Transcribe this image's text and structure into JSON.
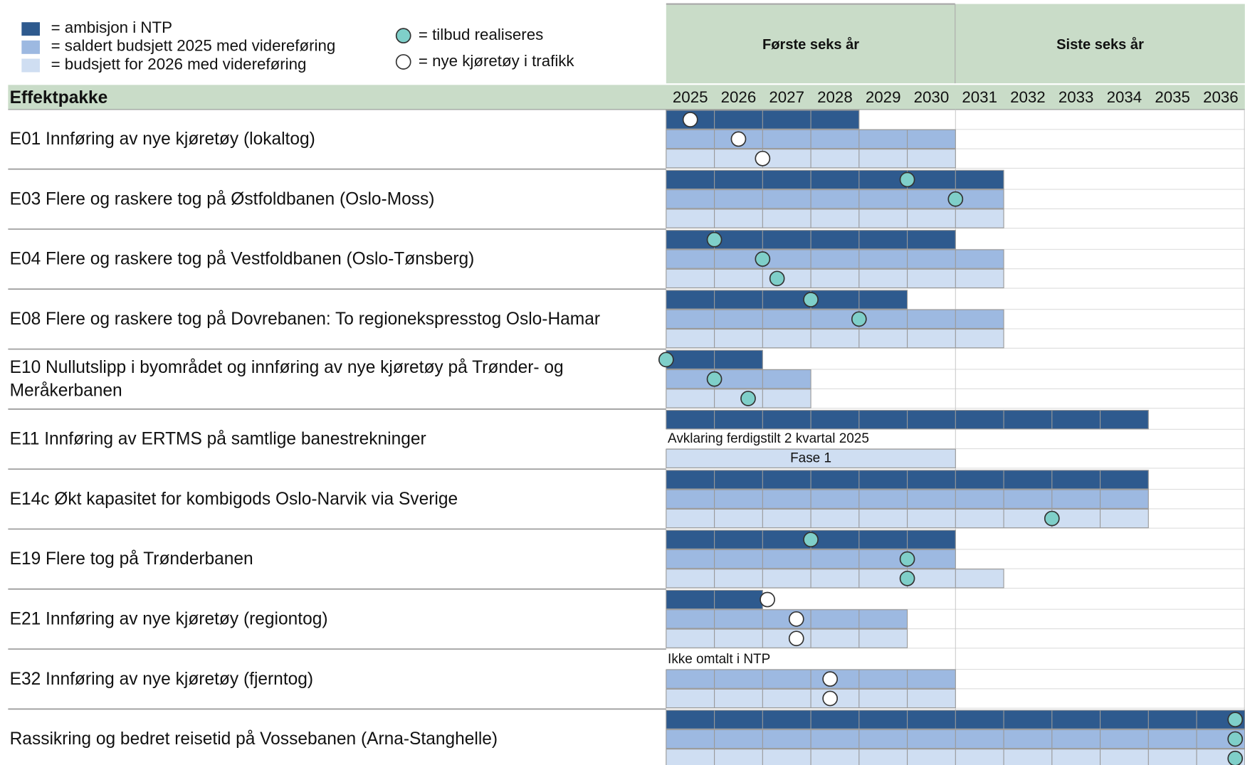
{
  "chart_data": {
    "type": "gantt",
    "row_header": "Effektpakke",
    "periods": [
      {
        "label": "Første seks år",
        "from": 2025,
        "to": 2031
      },
      {
        "label": "Siste seks år",
        "from": 2031,
        "to": 2037
      }
    ],
    "categories": [
      "2025",
      "2026",
      "2027",
      "2028",
      "2029",
      "2030",
      "2031",
      "2032",
      "2033",
      "2034",
      "2035",
      "2036"
    ],
    "xlim": [
      2025,
      2037
    ],
    "series": [
      {
        "name": "= ambisjon i NTP",
        "color": "#2e5a8e"
      },
      {
        "name": "= saldert budsjett 2025 med videreføring",
        "color": "#9db9e1"
      },
      {
        "name": "= budsjett for 2026 med videreføring",
        "color": "#cfdef2"
      }
    ],
    "marker_legend": {
      "realiseres": {
        "name": "= tilbud realiseres",
        "color": "#7fcfc9"
      },
      "kjoretoy": {
        "name": "= nye kjøretøy i trafikk",
        "color": "#ffffff"
      }
    },
    "rows": [
      {
        "label": [
          "E01 Innføring av nye kjøretøy (lokaltog)"
        ],
        "bars": [
          {
            "from": 2025,
            "to": 2029,
            "kjoretoy": [
              2025.5
            ]
          },
          {
            "from": 2025,
            "to": 2031,
            "kjoretoy": [
              2026.5
            ]
          },
          {
            "from": 2025,
            "to": 2031,
            "kjoretoy": [
              2027.0
            ]
          }
        ]
      },
      {
        "label": [
          "E03 Flere og raskere tog på Østfoldbanen (Oslo-Moss)"
        ],
        "bars": [
          {
            "from": 2025,
            "to": 2032,
            "realiseres": [
              2030.0
            ]
          },
          {
            "from": 2025,
            "to": 2032,
            "realiseres": [
              2031.0
            ]
          },
          {
            "from": 2025,
            "to": 2032
          }
        ]
      },
      {
        "label": [
          "E04 Flere og raskere tog på Vestfoldbanen (Oslo-Tønsberg)"
        ],
        "bars": [
          {
            "from": 2025,
            "to": 2031,
            "realiseres": [
              2026.0
            ]
          },
          {
            "from": 2025,
            "to": 2032,
            "realiseres": [
              2027.0
            ]
          },
          {
            "from": 2025,
            "to": 2032,
            "realiseres": [
              2027.3
            ]
          }
        ]
      },
      {
        "label": [
          "E08 Flere og raskere tog på Dovrebanen: To regionekspresstog Oslo-Hamar"
        ],
        "bars": [
          {
            "from": 2025,
            "to": 2030,
            "realiseres": [
              2028.0
            ]
          },
          {
            "from": 2025,
            "to": 2032,
            "realiseres": [
              2029.0
            ]
          },
          {
            "from": 2025,
            "to": 2032
          }
        ]
      },
      {
        "label": [
          "E10 Nullutslipp i byområdet og innføring av nye kjøretøy på Trønder- og",
          "Meråkerbanen"
        ],
        "bars": [
          {
            "from": 2025,
            "to": 2027,
            "realiseres": [
              2025.0
            ]
          },
          {
            "from": 2025,
            "to": 2028,
            "realiseres": [
              2026.0
            ]
          },
          {
            "from": 2025,
            "to": 2028,
            "realiseres": [
              2026.7
            ]
          }
        ]
      },
      {
        "label": [
          "E11 Innføring av ERTMS på samtlige banestrekninger"
        ],
        "bars": [
          {
            "from": 2025,
            "to": 2035
          },
          {
            "note": "Avklaring ferdigstilt 2 kvartal 2025"
          },
          {
            "from": 2025,
            "to": 2031,
            "text": "Fase 1"
          }
        ]
      },
      {
        "label": [
          "E14c Økt kapasitet for kombigods Oslo-Narvik via Sverige"
        ],
        "bars": [
          {
            "from": 2025,
            "to": 2035
          },
          {
            "from": 2025,
            "to": 2035
          },
          {
            "from": 2025,
            "to": 2035,
            "realiseres": [
              2033.0
            ]
          }
        ]
      },
      {
        "label": [
          "E19 Flere tog på Trønderbanen"
        ],
        "bars": [
          {
            "from": 2025,
            "to": 2031,
            "realiseres": [
              2028.0
            ]
          },
          {
            "from": 2025,
            "to": 2031,
            "realiseres": [
              2030.0
            ]
          },
          {
            "from": 2025,
            "to": 2032,
            "realiseres": [
              2030.0
            ]
          }
        ]
      },
      {
        "label": [
          "E21 Innføring av nye kjøretøy (regiontog)"
        ],
        "bars": [
          {
            "from": 2025,
            "to": 2027,
            "kjoretoy": [
              2027.1
            ]
          },
          {
            "from": 2025,
            "to": 2030,
            "kjoretoy": [
              2027.7
            ]
          },
          {
            "from": 2025,
            "to": 2030,
            "kjoretoy": [
              2027.7
            ]
          }
        ]
      },
      {
        "label": [
          "E32 Innføring av nye kjøretøy (fjerntog)"
        ],
        "bars": [
          {
            "note": "Ikke omtalt i NTP"
          },
          {
            "from": 2025,
            "to": 2031,
            "kjoretoy": [
              2028.4
            ]
          },
          {
            "from": 2025,
            "to": 2031,
            "kjoretoy": [
              2028.4
            ]
          }
        ]
      },
      {
        "label": [
          "Rassikring og bedret reisetid på Vossebanen (Arna-Stanghelle)"
        ],
        "bars": [
          {
            "from": 2025,
            "to": 2037,
            "realiseres": [
              2036.8
            ]
          },
          {
            "from": 2025,
            "to": 2037,
            "realiseres": [
              2036.8
            ]
          },
          {
            "from": 2025,
            "to": 2037,
            "realiseres": [
              2036.8
            ]
          }
        ]
      }
    ]
  }
}
